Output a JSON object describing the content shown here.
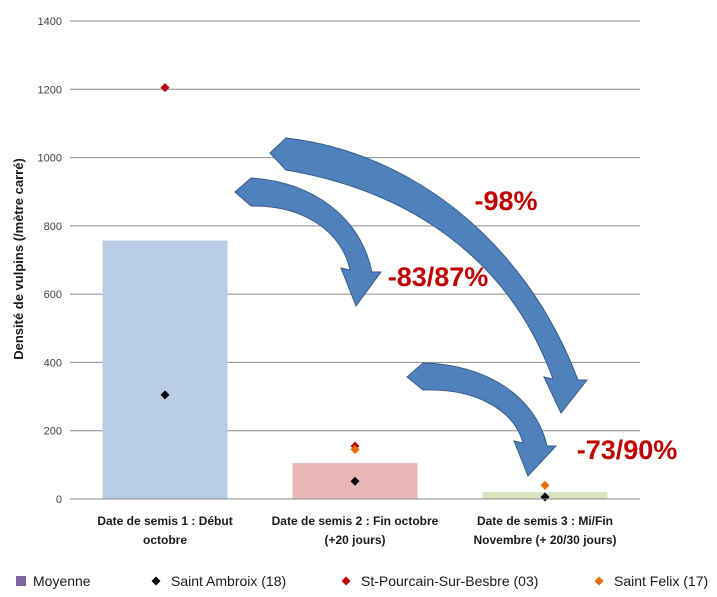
{
  "chart_data": {
    "type": "bar",
    "title": "",
    "xlabel": "",
    "ylabel": "Densité de vulpins (/mètre carré)",
    "ylim": [
      0,
      1400
    ],
    "yticks": [
      0,
      200,
      400,
      600,
      800,
      1000,
      1200,
      1400
    ],
    "grid": true,
    "legend_position": "bottom",
    "categories": [
      [
        "Date de semis 1 : Début",
        "octobre"
      ],
      [
        "Date de semis 2 : Fin octobre",
        "(+20 jours)"
      ],
      [
        "Date de semis 3 : Mi/Fin",
        "Novembre (+ 20/30 jours)"
      ]
    ],
    "bar_series": {
      "name": "Moyenne",
      "legend_color": "#8064a2",
      "values": [
        757,
        105,
        20
      ],
      "colors": [
        "#b9cde6",
        "#e8b7b6",
        "#d7e4bd"
      ]
    },
    "point_series": [
      {
        "name": "Saint Ambroix (18)",
        "color": "#000000",
        "values": [
          305,
          52,
          6
        ]
      },
      {
        "name": "St-Pourcain-Sur-Besbre (03)",
        "color": "#c00000",
        "values": [
          1205,
          155,
          null
        ]
      },
      {
        "name": "Saint Felix (17)",
        "color": "#e46c0a",
        "values": [
          null,
          145,
          40
        ]
      }
    ],
    "annotations": [
      {
        "text": "-98%",
        "color": "#c00000",
        "arrow_color": "#4f81bd"
      },
      {
        "text": "-83/87%",
        "color": "#c00000",
        "arrow_color": "#4f81bd"
      },
      {
        "text": "-73/90%",
        "color": "#c00000",
        "arrow_color": "#4f81bd"
      }
    ]
  }
}
